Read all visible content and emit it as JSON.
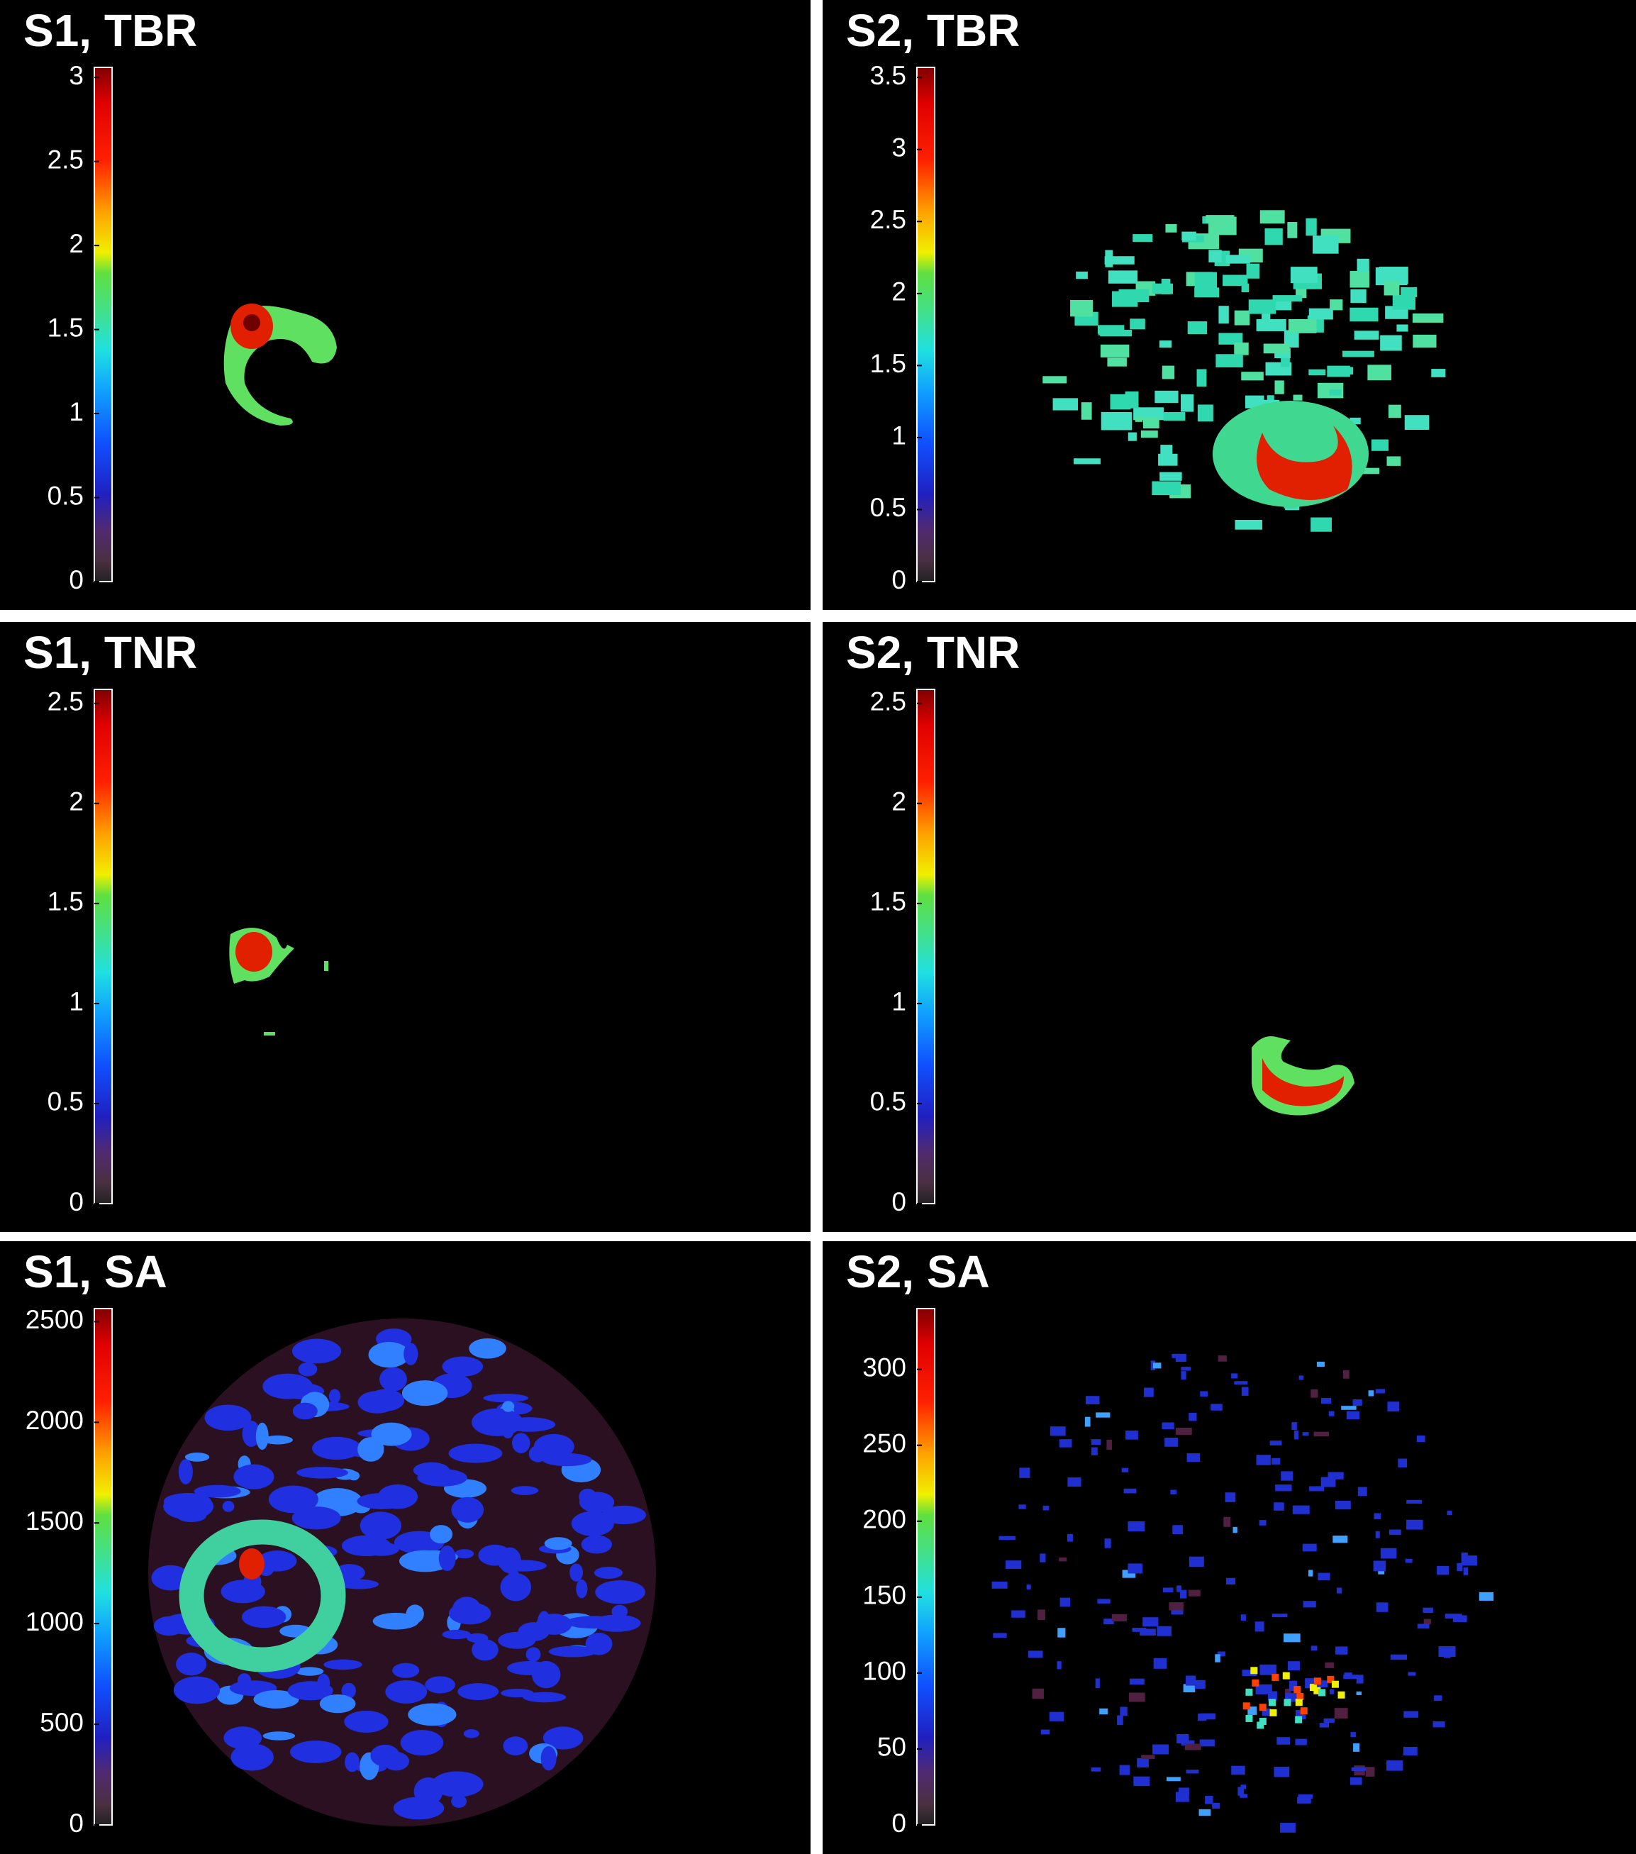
{
  "panels": [
    {
      "title": "S1, TBR",
      "colorbar": {
        "lim": [
          0,
          3.06
        ],
        "ticks": [
          0,
          0.5,
          1,
          1.5,
          2,
          2.5,
          3
        ]
      }
    },
    {
      "title": "S2, TBR",
      "colorbar": {
        "lim": [
          0,
          3.57
        ],
        "ticks": [
          0,
          0.5,
          1,
          1.5,
          2,
          2.5,
          3,
          3.5
        ]
      }
    },
    {
      "title": "S1, TNR",
      "colorbar": {
        "lim": [
          0,
          2.57
        ],
        "ticks": [
          0,
          0.5,
          1,
          1.5,
          2,
          2.5
        ]
      }
    },
    {
      "title": "S2, TNR",
      "colorbar": {
        "lim": [
          0,
          2.57
        ],
        "ticks": [
          0,
          0.5,
          1,
          1.5,
          2,
          2.5
        ]
      }
    },
    {
      "title": "S1, SA",
      "colorbar": {
        "lim": [
          0,
          2565
        ],
        "ticks": [
          0,
          500,
          1000,
          1500,
          2000,
          2500
        ]
      }
    },
    {
      "title": "S2, SA",
      "colorbar": {
        "lim": [
          0,
          340
        ],
        "ticks": [
          0,
          50,
          100,
          150,
          200,
          250,
          300
        ]
      }
    }
  ]
}
